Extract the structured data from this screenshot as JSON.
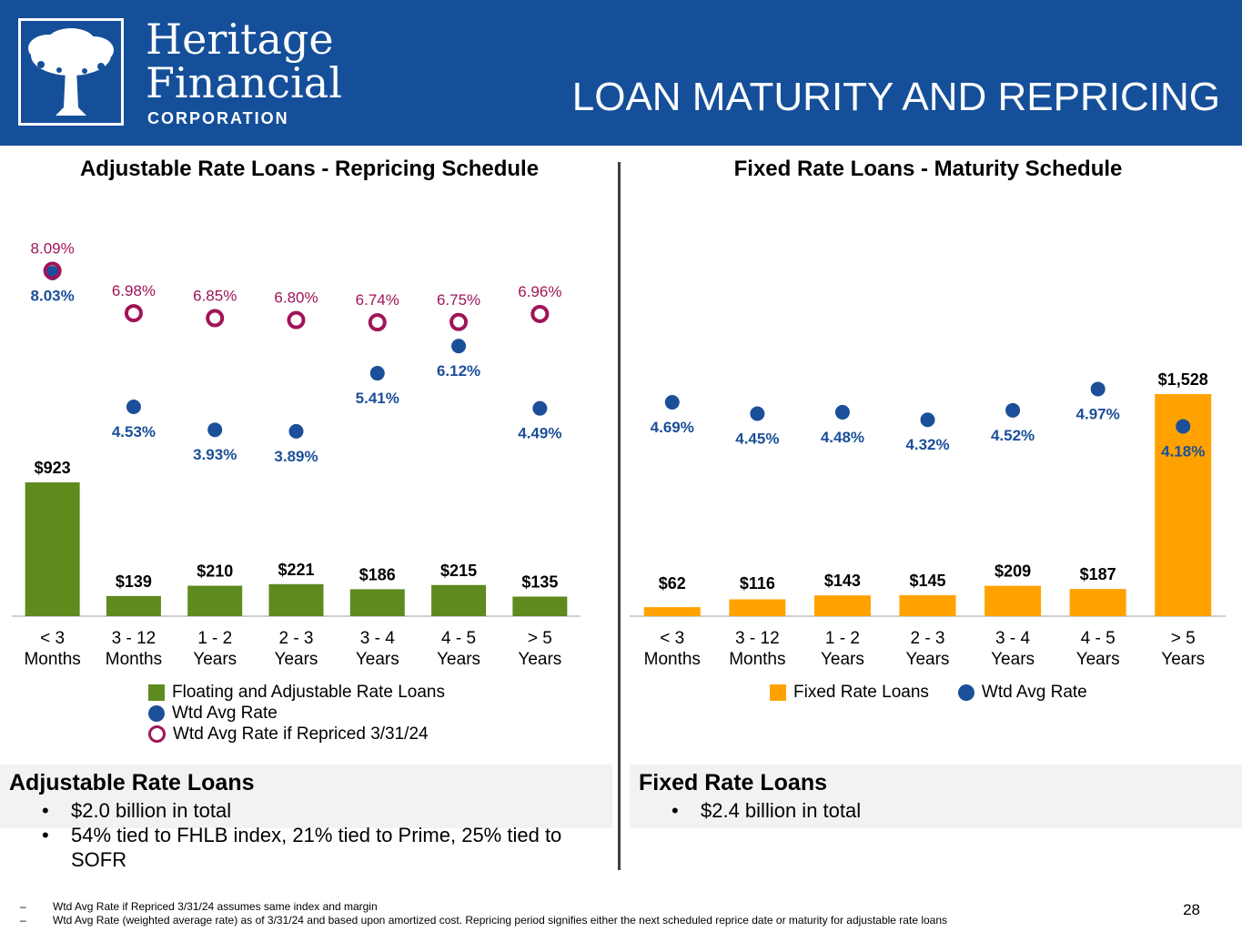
{
  "header": {
    "logo_line1": "Heritage",
    "logo_line2": "Financial",
    "logo_line3": "CORPORATION",
    "title": "LOAN MATURITY AND REPRICING",
    "background_color": "#154f9a"
  },
  "colors": {
    "adjustable_bar": "#5e8a1e",
    "fixed_bar": "#ffa200",
    "wtd_avg_dot": "#1b4f99",
    "repriced_ring": "#a01458"
  },
  "chart_data": [
    {
      "type": "bar",
      "title": "Adjustable Rate Loans - Repricing Schedule",
      "categories": [
        "< 3 Months",
        "3 - 12 Months",
        "1 - 2 Years",
        "2 - 3 Years",
        "3 - 4 Years",
        "4 - 5 Years",
        "> 5 Years"
      ],
      "category_lines": [
        [
          "< 3",
          "Months"
        ],
        [
          "3 - 12",
          "Months"
        ],
        [
          "1 - 2",
          "Years"
        ],
        [
          "2 - 3",
          "Years"
        ],
        [
          "3 - 4",
          "Years"
        ],
        [
          "4 - 5",
          "Years"
        ],
        [
          "> 5",
          "Years"
        ]
      ],
      "series": [
        {
          "name": "Floating and Adjustable Rate Loans",
          "kind": "bar",
          "values": [
            923,
            139,
            210,
            221,
            186,
            215,
            135
          ],
          "labels": [
            "$923",
            "$139",
            "$210",
            "$221",
            "$186",
            "$215",
            "$135"
          ]
        },
        {
          "name": "Wtd Avg Rate",
          "kind": "dot",
          "values": [
            8.03,
            4.53,
            3.93,
            3.89,
            5.41,
            6.12,
            4.49
          ],
          "labels": [
            "8.03%",
            "4.53%",
            "3.93%",
            "3.89%",
            "5.41%",
            "6.12%",
            "4.49%"
          ]
        },
        {
          "name": "Wtd Avg Rate if Repriced 3/31/24",
          "kind": "ring",
          "values": [
            8.09,
            6.98,
            6.85,
            6.8,
            6.74,
            6.75,
            6.96
          ],
          "labels": [
            "8.09%",
            "6.98%",
            "6.85%",
            "6.80%",
            "6.74%",
            "6.75%",
            "6.96%"
          ]
        }
      ],
      "legend": [
        "Floating and Adjustable Rate Loans",
        "Wtd Avg Rate",
        "Wtd Avg Rate if Repriced 3/31/24"
      ]
    },
    {
      "type": "bar",
      "title": "Fixed Rate Loans - Maturity Schedule",
      "categories": [
        "< 3 Months",
        "3 - 12 Months",
        "1 - 2 Years",
        "2 - 3 Years",
        "3 - 4 Years",
        "4 - 5 Years",
        "> 5 Years"
      ],
      "category_lines": [
        [
          "< 3",
          "Months"
        ],
        [
          "3 - 12",
          "Months"
        ],
        [
          "1 - 2",
          "Years"
        ],
        [
          "2 - 3",
          "Years"
        ],
        [
          "3 - 4",
          "Years"
        ],
        [
          "4 - 5",
          "Years"
        ],
        [
          "> 5",
          "Years"
        ]
      ],
      "series": [
        {
          "name": "Fixed Rate Loans",
          "kind": "bar",
          "values": [
            62,
            116,
            143,
            145,
            209,
            187,
            1528
          ],
          "labels": [
            "$62",
            "$116",
            "$143",
            "$145",
            "$209",
            "$187",
            "$1,528"
          ]
        },
        {
          "name": "Wtd Avg Rate",
          "kind": "dot",
          "values": [
            4.69,
            4.45,
            4.48,
            4.32,
            4.52,
            4.97,
            4.18
          ],
          "labels": [
            "4.69%",
            "4.45%",
            "4.48%",
            "4.32%",
            "4.52%",
            "4.97%",
            "4.18%"
          ]
        }
      ],
      "legend": [
        "Fixed Rate Loans",
        "Wtd Avg Rate"
      ]
    }
  ],
  "summary": {
    "adjustable": {
      "title": "Adjustable Rate Loans",
      "bullets": [
        "$2.0 billion in total",
        "54% tied to FHLB index, 21% tied to Prime, 25% tied to SOFR"
      ]
    },
    "fixed": {
      "title": "Fixed Rate Loans",
      "bullets": [
        "$2.4 billion in total"
      ]
    }
  },
  "footnotes": [
    {
      "dash": "–",
      "text": "Wtd Avg Rate if Repriced 3/31/24 assumes same index and margin"
    },
    {
      "dash": "–",
      "text": "Wtd Avg Rate (weighted average rate) as of 3/31/24 and based upon amortized cost.  Repricing period signifies either the next scheduled reprice date or maturity for adjustable rate loans"
    }
  ],
  "page_number": "28"
}
